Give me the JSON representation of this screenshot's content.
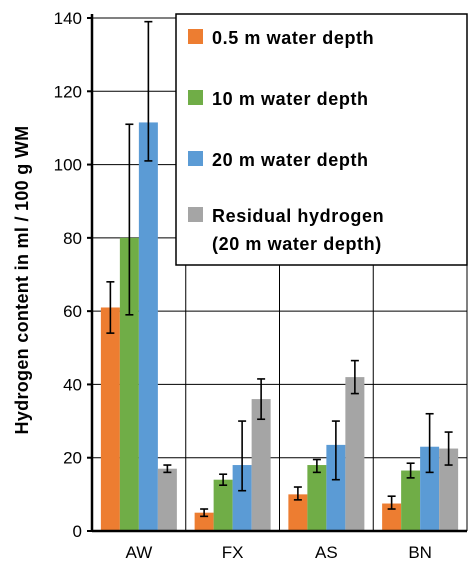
{
  "chart_data": {
    "type": "bar",
    "title": "",
    "xlabel": "",
    "ylabel": "Hydrogen content in ml / 100 g WM",
    "ylim": [
      0,
      140
    ],
    "yticks": [
      0,
      20,
      40,
      60,
      80,
      100,
      120,
      140
    ],
    "grid": true,
    "legend_position": "top-right",
    "categories": [
      "AW",
      "FX",
      "AS",
      "BN"
    ],
    "series": [
      {
        "name": "0.5 m water depth",
        "color": "#ed7d31",
        "values": [
          61,
          5,
          10,
          7.5
        ],
        "error_low": [
          54,
          4,
          8.5,
          6
        ],
        "error_high": [
          68,
          6,
          12,
          9.5
        ]
      },
      {
        "name": "10 m water depth",
        "color": "#70ad47",
        "values": [
          80,
          14,
          18,
          16.5
        ],
        "error_low": [
          59,
          12.5,
          16,
          14.5
        ],
        "error_high": [
          111,
          15.5,
          19.5,
          18.5
        ]
      },
      {
        "name": "20 m water depth",
        "color": "#5b9bd5",
        "values": [
          111.5,
          18,
          23.5,
          23
        ],
        "error_low": [
          101,
          11,
          14,
          16
        ],
        "error_high": [
          139,
          30,
          30,
          32
        ]
      },
      {
        "name": "Residual hydrogen",
        "name_line2": "(20 m water depth)",
        "color": "#a5a5a5",
        "values": [
          17,
          36,
          42,
          22.5
        ],
        "error_low": [
          16,
          30.5,
          37.5,
          18
        ],
        "error_high": [
          18,
          41.5,
          46.5,
          27
        ]
      }
    ]
  }
}
